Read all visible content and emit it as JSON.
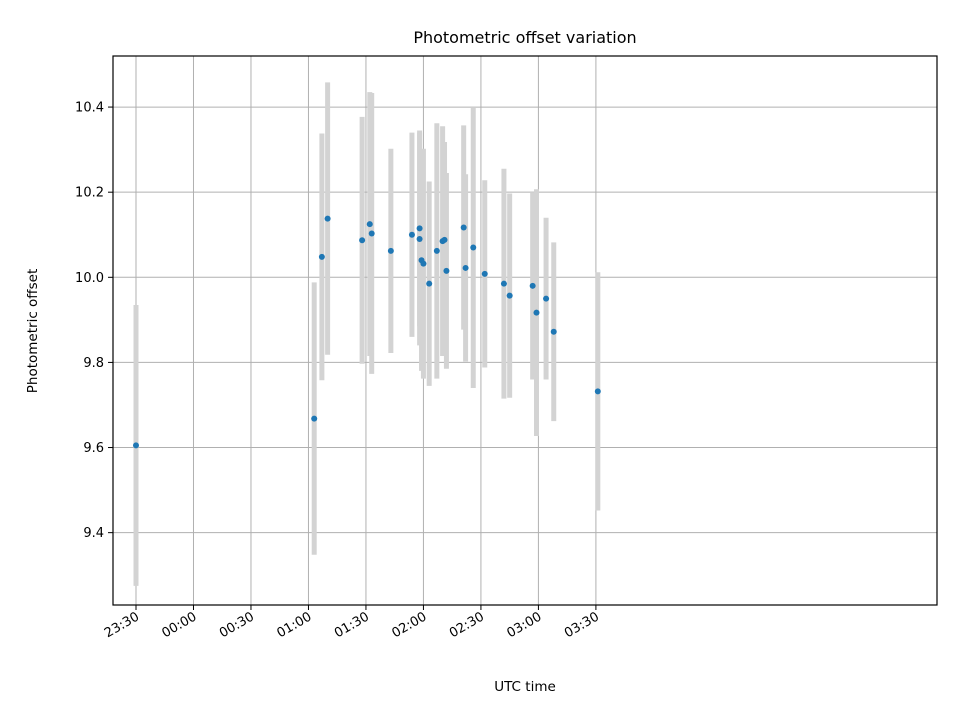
{
  "chart_data": {
    "type": "scatter",
    "title": "Photometric offset variation",
    "xlabel": "UTC time",
    "ylabel": "Photometric offset",
    "x_axis": {
      "type": "time",
      "range_minutes_after_2330": [
        -12,
        418
      ],
      "ticks": [
        {
          "min": 0,
          "label": "23:30"
        },
        {
          "min": 30,
          "label": "00:00"
        },
        {
          "min": 60,
          "label": "00:30"
        },
        {
          "min": 90,
          "label": "01:00"
        },
        {
          "min": 120,
          "label": "01:30"
        },
        {
          "min": 150,
          "label": "02:00"
        },
        {
          "min": 180,
          "label": "02:30"
        },
        {
          "min": 210,
          "label": "03:00"
        },
        {
          "min": 240,
          "label": "03:30"
        }
      ]
    },
    "y_axis": {
      "range": [
        9.23,
        10.52
      ],
      "ticks": [
        9.4,
        9.6,
        9.8,
        10.0,
        10.2,
        10.4
      ],
      "tick_labels": [
        "9.4",
        "9.6",
        "9.8",
        "10.0",
        "10.2",
        "10.4"
      ]
    },
    "grid": true,
    "colors": {
      "points": "#1f77b4",
      "errorbars": "#d3d3d3",
      "grid": "#b0b0b0"
    },
    "points": [
      {
        "time": "23:30",
        "y": 9.605,
        "err": 0.33
      },
      {
        "time": "01:03",
        "y": 9.668,
        "err": 0.32
      },
      {
        "time": "01:07",
        "y": 10.048,
        "err": 0.29
      },
      {
        "time": "01:10",
        "y": 10.138,
        "err": 0.32
      },
      {
        "time": "01:28",
        "y": 10.087,
        "err": 0.29
      },
      {
        "time": "01:32",
        "y": 10.125,
        "err": 0.31
      },
      {
        "time": "01:33",
        "y": 10.103,
        "err": 0.33
      },
      {
        "time": "01:43",
        "y": 10.062,
        "err": 0.24
      },
      {
        "time": "01:54",
        "y": 10.1,
        "err": 0.24
      },
      {
        "time": "01:58",
        "y": 10.115,
        "err": 0.23
      },
      {
        "time": "01:58",
        "y": 10.09,
        "err": 0.25
      },
      {
        "time": "01:59",
        "y": 10.04,
        "err": 0.26
      },
      {
        "time": "02:00",
        "y": 10.032,
        "err": 0.27
      },
      {
        "time": "02:03",
        "y": 9.985,
        "err": 0.24
      },
      {
        "time": "02:07",
        "y": 10.062,
        "err": 0.3
      },
      {
        "time": "02:10",
        "y": 10.085,
        "err": 0.27
      },
      {
        "time": "02:11",
        "y": 10.088,
        "err": 0.23
      },
      {
        "time": "02:12",
        "y": 10.015,
        "err": 0.23
      },
      {
        "time": "02:21",
        "y": 10.117,
        "err": 0.24
      },
      {
        "time": "02:22",
        "y": 10.022,
        "err": 0.22
      },
      {
        "time": "02:26",
        "y": 10.07,
        "err": 0.33
      },
      {
        "time": "02:32",
        "y": 10.008,
        "err": 0.22
      },
      {
        "time": "02:42",
        "y": 9.985,
        "err": 0.27
      },
      {
        "time": "02:45",
        "y": 9.957,
        "err": 0.24
      },
      {
        "time": "02:57",
        "y": 9.98,
        "err": 0.22
      },
      {
        "time": "02:59",
        "y": 9.917,
        "err": 0.29
      },
      {
        "time": "03:04",
        "y": 9.95,
        "err": 0.19
      },
      {
        "time": "03:08",
        "y": 9.872,
        "err": 0.21
      },
      {
        "time": "03:31",
        "y": 9.732,
        "err": 0.28
      }
    ]
  }
}
